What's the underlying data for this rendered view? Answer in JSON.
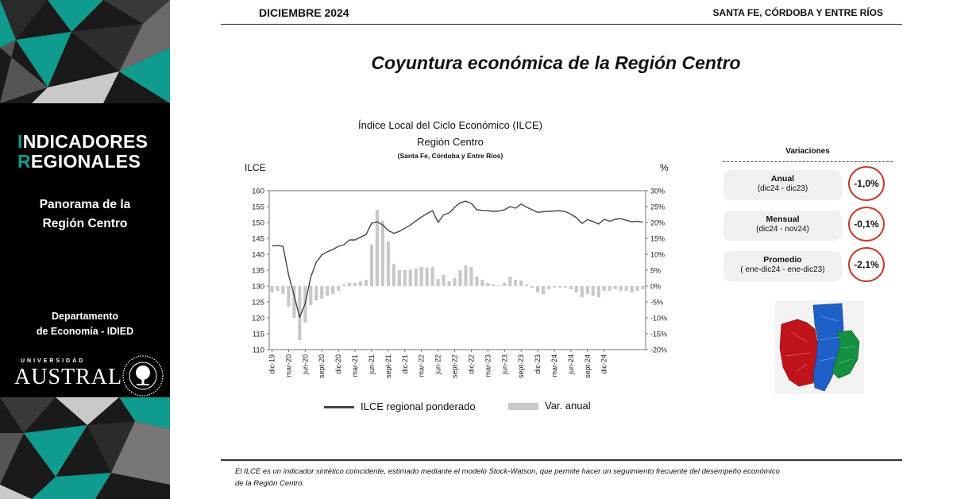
{
  "header": {
    "date": "DICIEMBRE 2024",
    "region": "SANTA FE, CÓRDOBA Y ENTRE RÍOS",
    "title": "Coyuntura económica de la Región Centro"
  },
  "sidebar": {
    "title_line1_first": "I",
    "title_line1_rest": "NDICADORES",
    "title_line2_first": "R",
    "title_line2_rest": "EGIONALES",
    "subtitle_line1": "Panorama de la",
    "subtitle_line2": "Región Centro",
    "department_line1": "Departamento",
    "department_line2": "de Economía - IDIED",
    "university_small": "UNIVERSIDAD",
    "university_name": "AUSTRAL",
    "accent_color": "#0f9b8e"
  },
  "chart_data": {
    "type": "line",
    "title": "Índice Local del Ciclo Económico (ILCE)",
    "subtitle": "Región Centro",
    "note": "(Santa Fe, Córdoba y Entre Ríos)",
    "ylabel_left": "ILCE",
    "ylabel_right": "%",
    "ylim_left": [
      110,
      160
    ],
    "ylim_right": [
      -20,
      30
    ],
    "yticks_left": [
      "160",
      "155",
      "150",
      "145",
      "140",
      "135",
      "130",
      "125",
      "120",
      "115",
      "110"
    ],
    "yticks_right": [
      "30%",
      "25%",
      "20%",
      "15%",
      "10%",
      "5%",
      "0%",
      "-5%",
      "-10%",
      "-15%",
      "-20%"
    ],
    "x_tick_labels": [
      "dic-19",
      "mar-20",
      "jun-20",
      "sept-20",
      "dic-20",
      "mar-21",
      "jun-21",
      "sept-21",
      "dic-21",
      "mar-22",
      "jun-22",
      "sept-22",
      "dic-22",
      "mar-23",
      "jun-23",
      "sept-23",
      "dic-23",
      "mar-24",
      "jun-24",
      "sept-24",
      "dic-24"
    ],
    "legend_position": "bottom",
    "grid": false,
    "series": [
      {
        "name": "ILCE regional ponderado",
        "type": "line",
        "color": "#444444",
        "values": [
          142.6,
          142.8,
          142.5,
          133.5,
          127.0,
          120.2,
          124.5,
          132.8,
          137.5,
          139.8,
          140.8,
          141.5,
          142.5,
          143.0,
          144.5,
          144.5,
          145.4,
          146.2,
          149.8,
          150.2,
          149.2,
          147.5,
          146.6,
          147.2,
          148.2,
          149.2,
          150.5,
          151.7,
          152.8,
          153.7,
          150.0,
          152.4,
          153.0,
          154.8,
          156.2,
          156.7,
          156.0,
          154.0,
          153.8,
          153.7,
          153.5,
          153.6,
          154.0,
          155.0,
          154.5,
          155.8,
          154.8,
          154.0,
          153.2,
          153.4,
          153.5,
          153.6,
          153.7,
          153.4,
          152.6,
          151.5,
          149.7,
          150.9,
          150.3,
          149.5,
          151.0,
          150.4,
          151.0,
          151.2,
          150.7,
          150.2,
          150.4,
          150.1
        ]
      },
      {
        "name": "Var. anual",
        "type": "bar",
        "color": "#c8c8c8",
        "values": [
          -2.0,
          -1.5,
          -2.5,
          -6.5,
          -10.0,
          -17.0,
          -11.5,
          -6.0,
          -4.5,
          -4.0,
          -3.0,
          -2.5,
          -1.5,
          0.5,
          1.0,
          1.0,
          1.5,
          2.0,
          13.0,
          24.0,
          20.5,
          14.0,
          7.0,
          5.0,
          5.0,
          5.2,
          5.5,
          6.0,
          5.8,
          6.0,
          2.2,
          3.5,
          1.5,
          2.5,
          5.0,
          6.5,
          6.0,
          3.0,
          2.0,
          1.0,
          0.5,
          0.2,
          1.0,
          3.0,
          2.0,
          1.8,
          0.5,
          -0.5,
          -2.0,
          -2.5,
          -1.0,
          -0.5,
          -0.5,
          -0.5,
          -1.0,
          -2.0,
          -3.5,
          -2.5,
          -3.0,
          -3.5,
          -1.5,
          -1.5,
          -1.0,
          -1.5,
          -1.5,
          -2.0,
          -1.5,
          -1.0
        ]
      }
    ]
  },
  "variations": {
    "title": "Variaciones",
    "items": [
      {
        "label": "Anual",
        "sub": "(dic24 - dic23)",
        "value": "-1,0%"
      },
      {
        "label": "Mensual",
        "sub": "(dic24 - nov24)",
        "value": "-0,1%"
      },
      {
        "label": "Promedio",
        "sub": "( ene-dic24 - ene-dic23)",
        "value": "-2,1%"
      }
    ],
    "circle_color": "#c0392b"
  },
  "map": {
    "colors": {
      "cordoba": "#c0141c",
      "santa_fe": "#1f5fc8",
      "entre_rios": "#149040"
    }
  },
  "footer": {
    "line1": "El ILCE es un indicador sintético coincidente, estimado mediante el modelo Stock-Watson, que permite hacer un seguimiento frecuente del desempeño económico",
    "line2": "de la Región Centro."
  }
}
